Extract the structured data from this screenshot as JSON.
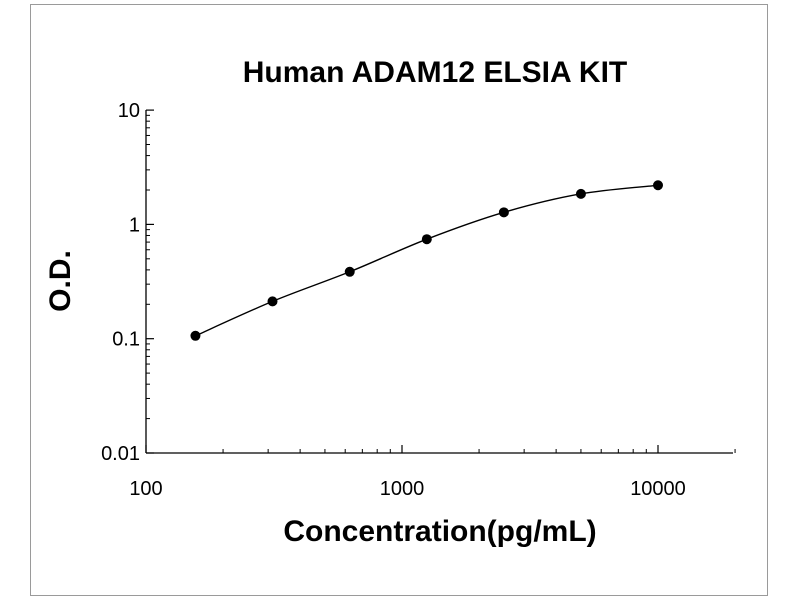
{
  "chart_data": {
    "type": "scatter",
    "title": "Human ADAM12 ELSIA KIT",
    "xlabel": "Concentration(pg/mL)",
    "ylabel": "O.D.",
    "x_scale": "log",
    "y_scale": "log",
    "xlim": [
      100,
      20000
    ],
    "ylim": [
      0.01,
      10
    ],
    "x_ticks": [
      "100",
      "1000",
      "10000"
    ],
    "y_ticks": [
      "10",
      "1",
      "0.1",
      "0.01"
    ],
    "grid": false,
    "legend": "none",
    "fit_curve": true,
    "series": [
      {
        "x": [
          156,
          312,
          625,
          1250,
          2500,
          5000,
          10000
        ],
        "y": [
          0.106,
          0.212,
          0.385,
          0.742,
          1.275,
          1.85,
          2.2
        ]
      }
    ],
    "colors": {
      "line": "#000000",
      "marker": "#000000"
    }
  }
}
